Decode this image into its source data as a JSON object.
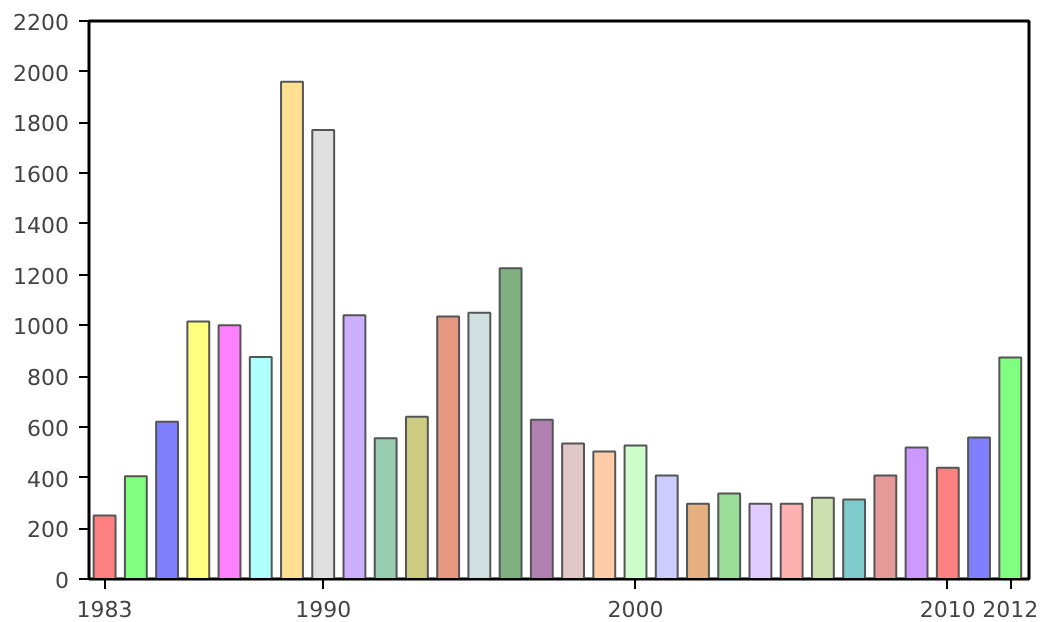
{
  "chart_data": {
    "type": "bar",
    "x": [
      1983,
      1984,
      1985,
      1986,
      1987,
      1988,
      1989,
      1990,
      1991,
      1992,
      1993,
      1994,
      1995,
      1996,
      1997,
      1998,
      1999,
      2000,
      2001,
      2002,
      2003,
      2004,
      2005,
      2006,
      2007,
      2008,
      2009,
      2010,
      2011,
      2012
    ],
    "values": [
      250,
      405,
      620,
      1015,
      1000,
      875,
      1960,
      1770,
      1040,
      555,
      640,
      1035,
      1050,
      1225,
      628,
      534,
      503,
      526,
      408,
      297,
      337,
      297,
      297,
      320,
      313,
      408,
      518,
      439,
      558,
      873
    ],
    "colors": [
      "#ff8080",
      "#80ff80",
      "#8080ff",
      "#ffff80",
      "#ff80ff",
      "#b0ffff",
      "#ffe090",
      "#e0e0e0",
      "#ccb0ff",
      "#99ccb0",
      "#cccc80",
      "#e69980",
      "#d0e0e0",
      "#80b080",
      "#b080b0",
      "#e0c8c8",
      "#ffcca8",
      "#ccffcc",
      "#ccccff",
      "#e6b080",
      "#99dd99",
      "#e0ccff",
      "#ffb0b0",
      "#cce0b0",
      "#80cccc",
      "#e69999",
      "#cc99ff",
      "#ff8080",
      "#8080ff",
      "#80ff80"
    ],
    "xlim": [
      1982.5,
      2012.6
    ],
    "xticks": [
      1983,
      1990,
      2000,
      2010,
      2012
    ],
    "ylim": [
      0,
      2200
    ],
    "yticks": [
      0,
      200,
      400,
      600,
      800,
      1000,
      1200,
      1400,
      1600,
      1800,
      2000,
      2200
    ],
    "grid": false
  }
}
